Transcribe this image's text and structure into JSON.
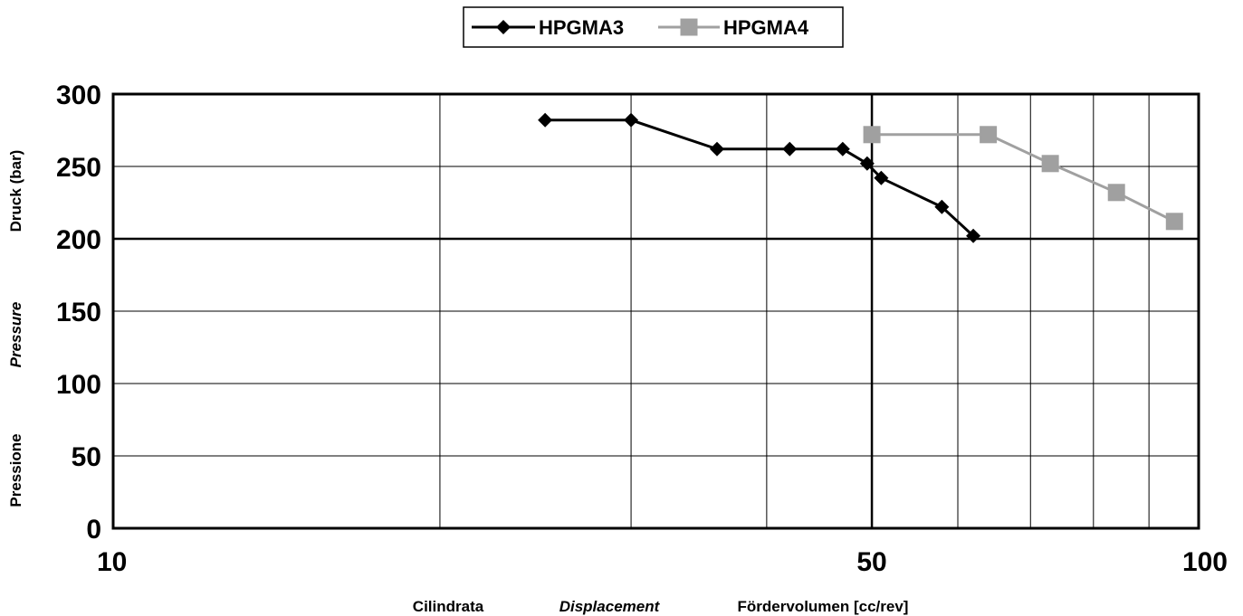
{
  "chart_data": {
    "type": "line",
    "x_scale": "log",
    "xlim": [
      10,
      100
    ],
    "ylim": [
      0,
      300
    ],
    "x_ticks": [
      {
        "value": 10,
        "label": "10"
      },
      {
        "value": 50,
        "label": "50"
      },
      {
        "value": 100,
        "label": "100"
      }
    ],
    "x_gridlines": [
      20,
      30,
      40,
      50,
      60,
      70,
      80,
      90
    ],
    "y_ticks": [
      0,
      50,
      100,
      150,
      200,
      250,
      300
    ],
    "grid": true,
    "emphasized_y_gridline": 200,
    "emphasized_x_gridline": 50,
    "xlabel_parts": [
      {
        "text": "Cilindrata",
        "italic": false
      },
      {
        "text": "Displacement",
        "italic": true
      },
      {
        "text": "Fördervolumen [cc/rev]",
        "italic": false
      }
    ],
    "ylabel_parts": [
      {
        "text": "Druck (bar)",
        "italic": false
      },
      {
        "text": "Pressure",
        "italic": true
      },
      {
        "text": "Pressione",
        "italic": false
      }
    ],
    "legend_position": "top-center",
    "series": [
      {
        "name": "HPGMA3",
        "color": "#000000",
        "marker": "diamond",
        "x": [
          25,
          30,
          36,
          42,
          47,
          49.5,
          51,
          58,
          62
        ],
        "y": [
          282,
          282,
          262,
          262,
          262,
          252,
          242,
          222,
          202
        ]
      },
      {
        "name": "HPGMA4",
        "color": "#a0a0a0",
        "marker": "square",
        "x": [
          50,
          64,
          73,
          84,
          95
        ],
        "y": [
          272,
          272,
          252,
          232,
          212
        ]
      }
    ]
  }
}
